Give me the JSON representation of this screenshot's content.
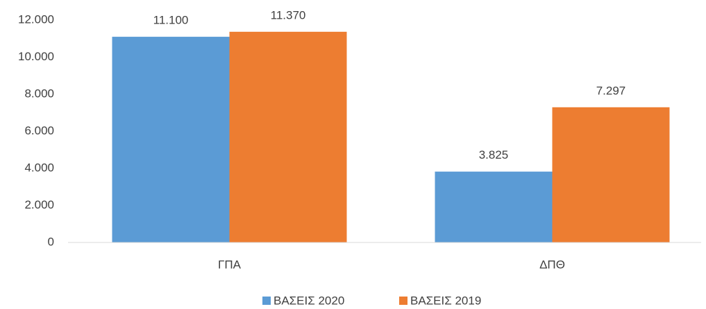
{
  "chart_data": {
    "type": "bar",
    "categories": [
      "ΓΠΑ",
      "ΔΠΘ"
    ],
    "series": [
      {
        "name": "ΒΑΣΕΙΣ 2020",
        "color": "#5b9bd5",
        "values": [
          11100,
          3825
        ],
        "value_labels": [
          "11.100",
          "3.825"
        ]
      },
      {
        "name": "ΒΑΣΕΙΣ 2019",
        "color": "#ed7d31",
        "values": [
          11370,
          7297
        ],
        "value_labels": [
          "11.370",
          "7.297"
        ]
      }
    ],
    "ylim": [
      0,
      12000
    ],
    "yticks": [
      0,
      {
        "value": 2000,
        "label": "2.000"
      },
      {
        "value": 4000,
        "label": "4.000"
      },
      {
        "value": 6000,
        "label": "6.000"
      },
      {
        "value": 8000,
        "label": "8.000"
      },
      {
        "value": 10000,
        "label": "10.000"
      },
      {
        "value": 12000,
        "label": "12.000"
      }
    ],
    "grid": false,
    "legend": "bottom"
  }
}
